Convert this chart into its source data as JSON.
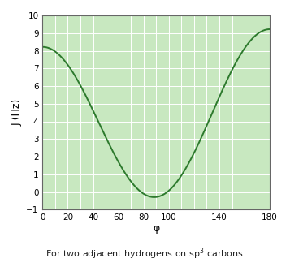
{
  "xlabel": "φ",
  "ylabel": "J (Hz)",
  "caption": "For two adjacent hydrogens on sp³ carbons",
  "xlim": [
    0,
    180
  ],
  "ylim": [
    -1,
    10
  ],
  "xticks": [
    0,
    20,
    40,
    60,
    80,
    100,
    140,
    180
  ],
  "yticks": [
    -1,
    0,
    1,
    2,
    3,
    4,
    5,
    6,
    7,
    8,
    9,
    10
  ],
  "bg_color": "#c8e8c0",
  "line_color": "#2d7a2d",
  "grid_color": "#ffffff",
  "fig_bg_color": "#ffffff",
  "karplus_A": 9.0,
  "karplus_B": -0.5,
  "karplus_C": -0.28
}
